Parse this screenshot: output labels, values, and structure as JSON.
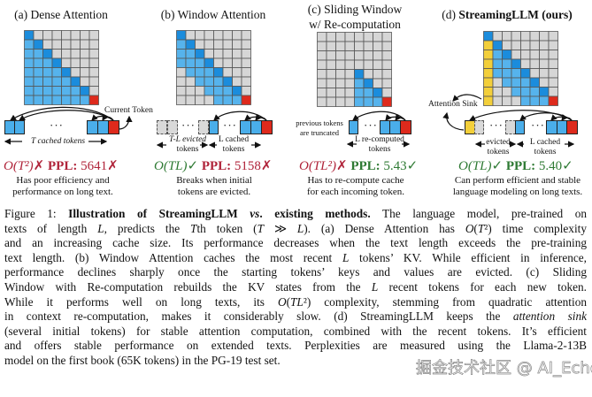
{
  "colors": {
    "dark_blue": "#1b8cdc",
    "light_blue": "#56b3ec",
    "gray": "#d6d6d6",
    "red": "#de2a1c",
    "yellow": "#f3cf3a",
    "grid": "#555555"
  },
  "panels": [
    {
      "title": "(a) Dense Attention",
      "matrix": [
        "D.......",
        "LD......",
        "LLD.....",
        "LLLD....",
        "LLLLD...",
        "LLLLLD..",
        "LLLLLLD.",
        "LLLLLLLR"
      ],
      "labels": {
        "current": "Current Token",
        "cached": "T cached tokens"
      },
      "complexity": "O(T²)",
      "complexity_mark": "✗",
      "ppl_label": "PPL:",
      "ppl": "5641",
      "ppl_mark": "✗",
      "desc": [
        "Has poor efficiency and",
        "performance on long text."
      ]
    },
    {
      "title": "(b) Window Attention",
      "matrix": [
        "D.......",
        "LD......",
        "LLD.....",
        "LLLD....",
        ".LLLD...",
        "..LLLD..",
        "...LLLD.",
        "....LLLR"
      ],
      "labels": {
        "evicted": [
          "T-L evicted",
          "tokens"
        ],
        "cached": [
          "L cached",
          "tokens"
        ]
      },
      "complexity": "O(TL)",
      "complexity_mark": "✓",
      "ppl_label": "PPL:",
      "ppl": "5158",
      "ppl_mark": "✗",
      "desc": [
        "Breaks when initial",
        "tokens are evicted."
      ]
    },
    {
      "title": [
        "(c) Sliding Window",
        "w/ Re-computation"
      ],
      "matrix": [
        "........",
        "........",
        "........",
        "........",
        "....D...",
        "....LD..",
        "....LLD.",
        "....LLLR"
      ],
      "labels": {
        "truncated": [
          "previous tokens",
          "are truncated"
        ],
        "recomputed": [
          "L re-computed",
          "tokens"
        ]
      },
      "complexity": "O(TL²)",
      "complexity_mark": "✗",
      "ppl_label": "PPL:",
      "ppl": "5.43",
      "ppl_mark": "✓",
      "desc": [
        "Has to re-compute cache",
        "for each incoming token."
      ]
    },
    {
      "title_prefix": "(d) ",
      "title_bold": "StreamingLLM (ours)",
      "matrix": [
        "D.......",
        "YD......",
        "YLD.....",
        "YLLD....",
        "YLLLD...",
        "Y.LLLD..",
        "Y..LLLD.",
        "Y...LLLR"
      ],
      "labels": {
        "sink": "Attention Sink",
        "evicted": [
          "evicted",
          "tokens"
        ],
        "cached": [
          "L cached",
          "tokens"
        ]
      },
      "complexity": "O(TL)",
      "complexity_mark": "✓",
      "ppl_label": "PPL:",
      "ppl": "5.40",
      "ppl_mark": "✓",
      "desc": [
        "Can perform efficient and stable",
        "language modeling on long texts."
      ]
    }
  ],
  "dots": "···",
  "caption": [
    [
      {
        "t": "Figure 1: ",
        "s": "n"
      },
      {
        "t": "Illustration of StreamingLLM ",
        "s": "b"
      },
      {
        "t": "vs",
        "s": "bi"
      },
      {
        "t": ". existing methods.",
        "s": "b"
      },
      {
        "t": " The language model, pre-trained on",
        "s": "n"
      }
    ],
    [
      {
        "t": "texts of length ",
        "s": "n"
      },
      {
        "t": "L",
        "s": "i"
      },
      {
        "t": ", predicts the ",
        "s": "n"
      },
      {
        "t": "T",
        "s": "i"
      },
      {
        "t": "th token (",
        "s": "n"
      },
      {
        "t": "T",
        "s": "i"
      },
      {
        "t": " ≫ ",
        "s": "n"
      },
      {
        "t": "L",
        "s": "i"
      },
      {
        "t": "). (a) Dense Attention has ",
        "s": "n"
      },
      {
        "t": "O",
        "s": "i"
      },
      {
        "t": "(",
        "s": "n"
      },
      {
        "t": "T",
        "s": "i"
      },
      {
        "t": "²) time complexity",
        "s": "n"
      }
    ],
    [
      {
        "t": "and an increasing cache size. Its performance decreases when the text length exceeds the pre-training",
        "s": "n"
      }
    ],
    [
      {
        "t": "text length. (b) Window Attention caches the most recent ",
        "s": "n"
      },
      {
        "t": "L",
        "s": "i"
      },
      {
        "t": " tokens’ KV. While efficient in inference,",
        "s": "n"
      }
    ],
    [
      {
        "t": "performance declines sharply once the starting tokens’ keys and values are evicted.  (c) Sliding",
        "s": "n"
      }
    ],
    [
      {
        "t": "Window with Re-computation rebuilds the KV states from the ",
        "s": "n"
      },
      {
        "t": "L",
        "s": "i"
      },
      {
        "t": " recent tokens for each new token.",
        "s": "n"
      }
    ],
    [
      {
        "t": "While it performs well on long texts, its ",
        "s": "n"
      },
      {
        "t": "O",
        "s": "i"
      },
      {
        "t": "(",
        "s": "n"
      },
      {
        "t": "TL",
        "s": "i"
      },
      {
        "t": "²) complexity, stemming from quadratic attention",
        "s": "n"
      }
    ],
    [
      {
        "t": "in context re-computation, makes it considerably slow. (d) StreamingLLM keeps the ",
        "s": "n"
      },
      {
        "t": "attention sink",
        "s": "i"
      }
    ],
    [
      {
        "t": "(several initial tokens) for stable attention computation, combined with the recent tokens. It’s efficient",
        "s": "n"
      }
    ],
    [
      {
        "t": "and offers stable performance on extended texts. Perplexities are measured using the Llama-2-13B",
        "s": "n"
      }
    ],
    [
      {
        "t": "model on the first book (65K tokens) in the PG-19 test set.",
        "s": "n"
      }
    ]
  ],
  "watermark": "掘金技术社区 @ AI_Echoes"
}
